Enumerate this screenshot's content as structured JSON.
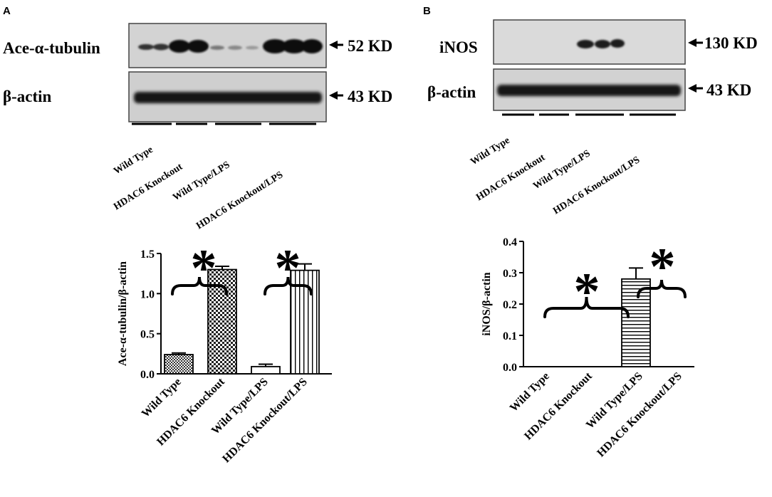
{
  "panels": [
    {
      "letter": "A",
      "blots": [
        {
          "label": "Ace-α-tubulin",
          "size": "52 KD"
        },
        {
          "label": "β-actin",
          "size": "43 KD"
        }
      ],
      "lane_groups": [
        "Wild Type",
        "HDAC6 Knockout",
        "Wild Type/LPS",
        "HDAC6 Knockout/LPS"
      ]
    },
    {
      "letter": "B",
      "blots": [
        {
          "label": "iNOS",
          "size": "130 KD"
        },
        {
          "label": "β-actin",
          "size": "43 KD"
        }
      ],
      "lane_groups": [
        "Wild Type",
        "HDAC6 Knockout",
        "Wild Type/LPS",
        "HDAC6 Knockout/LPS"
      ]
    }
  ],
  "significance_marker": "*",
  "chart_data": [
    {
      "type": "bar",
      "categories": [
        "Wild Type",
        "HDAC6 Knockout",
        "Wild Type/LPS",
        "HDAC6 Knockout/LPS"
      ],
      "values": [
        0.24,
        1.3,
        0.09,
        1.29
      ],
      "errors": [
        0.02,
        0.04,
        0.03,
        0.08
      ],
      "fills": [
        "dense-checker",
        "checker",
        "none",
        "vertical-lines"
      ],
      "ylabel": "Ace-α-tubulin/β-actin",
      "ylim": [
        0,
        1.5
      ],
      "yticks": [
        "0.0",
        "0.5",
        "1.0",
        "1.5"
      ],
      "significance": [
        [
          0,
          1
        ],
        [
          2,
          3
        ]
      ]
    },
    {
      "type": "bar",
      "categories": [
        "Wild Type",
        "HDAC6 Knockout",
        "Wild Type/LPS",
        "HDAC6 Knockout/LPS"
      ],
      "values": [
        0.0,
        0.0,
        0.28,
        0.0
      ],
      "errors": [
        0,
        0,
        0.035,
        0
      ],
      "fills": [
        "none",
        "none",
        "horizontal-lines",
        "none"
      ],
      "ylabel": "iNOS/β-actin",
      "ylim": [
        0,
        0.4
      ],
      "yticks": [
        "0.0",
        "0.1",
        "0.2",
        "0.3",
        "0.4"
      ],
      "significance": [
        [
          0,
          2
        ],
        [
          2,
          3
        ]
      ]
    }
  ]
}
